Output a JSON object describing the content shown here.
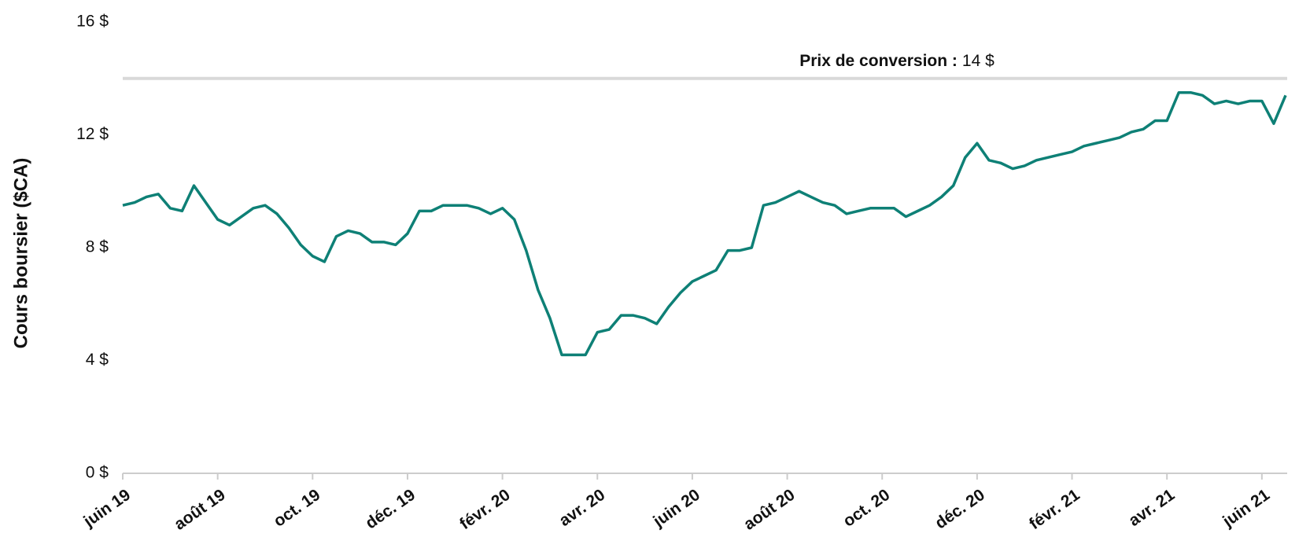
{
  "chart_data": {
    "type": "line",
    "y_label": "Cours boursier ($CA)",
    "categories": [
      "juin 19",
      null,
      null,
      null,
      null,
      null,
      null,
      null,
      "août 19",
      null,
      null,
      null,
      null,
      null,
      null,
      null,
      "oct. 19",
      null,
      null,
      null,
      null,
      null,
      null,
      null,
      "déc. 19",
      null,
      null,
      null,
      null,
      null,
      null,
      null,
      "févr. 20",
      null,
      null,
      null,
      null,
      null,
      null,
      null,
      "avr. 20",
      null,
      null,
      null,
      null,
      null,
      null,
      null,
      "juin 20",
      null,
      null,
      null,
      null,
      null,
      null,
      null,
      "août 20",
      null,
      null,
      null,
      null,
      null,
      null,
      null,
      "oct. 20",
      null,
      null,
      null,
      null,
      null,
      null,
      null,
      "déc. 20",
      null,
      null,
      null,
      null,
      null,
      null,
      null,
      "févr. 21",
      null,
      null,
      null,
      null,
      null,
      null,
      null,
      "avr. 21",
      null,
      null,
      null,
      null,
      null,
      null,
      null,
      "juin 21",
      null,
      null
    ],
    "values": [
      9.5,
      9.6,
      9.8,
      9.9,
      9.4,
      9.3,
      10.2,
      9.6,
      9.0,
      8.8,
      9.1,
      9.4,
      9.5,
      9.2,
      8.7,
      8.1,
      7.7,
      7.5,
      8.4,
      8.6,
      8.5,
      8.2,
      8.2,
      8.1,
      8.5,
      9.3,
      9.3,
      9.5,
      9.5,
      9.5,
      9.4,
      9.2,
      9.4,
      9.0,
      7.9,
      6.5,
      5.5,
      4.2,
      4.2,
      4.2,
      5.0,
      5.1,
      5.6,
      5.6,
      5.5,
      5.3,
      5.9,
      6.4,
      6.8,
      7.0,
      7.2,
      7.9,
      7.9,
      8.0,
      9.5,
      9.6,
      9.8,
      10.0,
      9.8,
      9.6,
      9.5,
      9.2,
      9.3,
      9.4,
      9.4,
      9.4,
      9.1,
      9.3,
      9.5,
      9.8,
      10.2,
      11.2,
      11.7,
      11.1,
      11.0,
      10.8,
      10.9,
      11.1,
      11.2,
      11.3,
      11.4,
      11.6,
      11.7,
      11.8,
      11.9,
      12.1,
      12.2,
      12.5,
      12.5,
      13.5,
      13.5,
      13.4,
      13.1,
      13.2,
      13.1,
      13.2,
      13.2,
      12.4,
      13.4
    ],
    "color": "#0e8076",
    "ylim": [
      0,
      16
    ],
    "yticks": [
      {
        "value": 0,
        "label": "0 $"
      },
      {
        "value": 4,
        "label": "4 $"
      },
      {
        "value": 8,
        "label": "8 $"
      },
      {
        "value": 12,
        "label": "12 $"
      },
      {
        "value": 16,
        "label": "16 $"
      }
    ],
    "annotation": {
      "label": "Prix de conversion :",
      "value": 14,
      "value_label": "14 $",
      "color": "#d9d9d9"
    }
  }
}
